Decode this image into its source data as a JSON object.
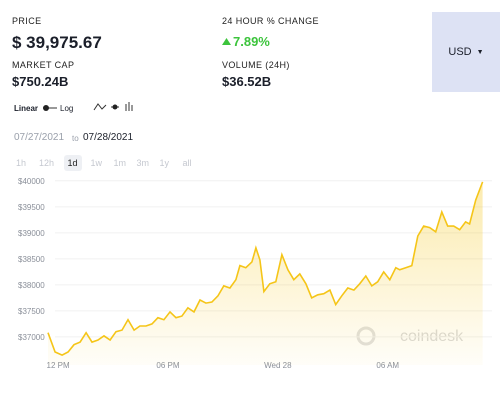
{
  "stats": {
    "price": {
      "label": "PRICE",
      "value": "$ 39,975.67"
    },
    "change": {
      "label": "24 HOUR % CHANGE",
      "value": "7.89%"
    },
    "market_cap": {
      "label": "MARKET CAP",
      "value": "$750.24B"
    },
    "volume": {
      "label": "VOLUME (24H)",
      "value": "$36.52B"
    }
  },
  "currency": "USD",
  "scale": {
    "linear": "Linear",
    "log": "Log"
  },
  "date_range": {
    "from": "07/27/2021",
    "to_word": "to",
    "to": "07/28/2021"
  },
  "ranges": [
    "1h",
    "12h",
    "1d",
    "1w",
    "1m",
    "3m",
    "1y",
    "all"
  ],
  "watermark": "coindesk",
  "chart_data": {
    "type": "line",
    "color": "#f5c518",
    "x": [
      11.45,
      11.84,
      12.22,
      12.55,
      12.87,
      13.2,
      13.53,
      13.85,
      14.18,
      14.51,
      14.84,
      15.16,
      15.49,
      15.82,
      16.15,
      16.47,
      16.8,
      17.13,
      17.45,
      17.78,
      18.11,
      18.44,
      18.76,
      19.09,
      19.42,
      19.75,
      20.07,
      20.4,
      20.73,
      21.05,
      21.38,
      21.71,
      21.93,
      22.25,
      22.58,
      22.8,
      23.02,
      23.24,
      23.56,
      23.89,
      24.22,
      24.55,
      24.87,
      25.2,
      25.53,
      25.85,
      26.18,
      26.51,
      26.84,
      27.16,
      27.49,
      27.82,
      28.15,
      28.47,
      28.8,
      29.13,
      29.45,
      29.78,
      30.11,
      30.44,
      30.65,
      30.98,
      31.31,
      31.64,
      31.96,
      32.29,
      32.62,
      32.95,
      33.27,
      33.6,
      33.93,
      34.25,
      34.47,
      34.8,
      35.18
    ],
    "values": [
      37080,
      36710,
      36650,
      36710,
      36850,
      36900,
      37080,
      36900,
      36940,
      37020,
      36940,
      37100,
      37130,
      37330,
      37130,
      37210,
      37210,
      37250,
      37370,
      37330,
      37480,
      37370,
      37400,
      37560,
      37480,
      37710,
      37650,
      37670,
      37790,
      37980,
      37940,
      38100,
      38370,
      38330,
      38440,
      38710,
      38480,
      37870,
      38020,
      38060,
      38580,
      38290,
      38100,
      38210,
      38020,
      37750,
      37810,
      37830,
      37900,
      37620,
      37790,
      37940,
      37900,
      38020,
      38170,
      37980,
      38060,
      38250,
      38100,
      38330,
      38290,
      38330,
      38370,
      38940,
      39130,
      39100,
      39020,
      39400,
      39130,
      39130,
      39060,
      39210,
      39170,
      39630,
      39980
    ],
    "xlim": [
      11.45,
      35.2
    ],
    "xticks": [
      {
        "value": 12,
        "label": "12 PM"
      },
      {
        "value": 18,
        "label": "06 PM"
      },
      {
        "value": 24,
        "label": "Wed 28"
      },
      {
        "value": 30,
        "label": "06 AM"
      }
    ],
    "ylim": [
      36460,
      40400
    ],
    "yticks": [
      {
        "value": 37000,
        "label": "$37000"
      },
      {
        "value": 37500,
        "label": "$37500"
      },
      {
        "value": 38000,
        "label": "$38000"
      },
      {
        "value": 38500,
        "label": "$38500"
      },
      {
        "value": 39000,
        "label": "$39000"
      },
      {
        "value": 39500,
        "label": "$39500"
      },
      {
        "value": 40000,
        "label": "$40000"
      }
    ],
    "grid": true
  }
}
